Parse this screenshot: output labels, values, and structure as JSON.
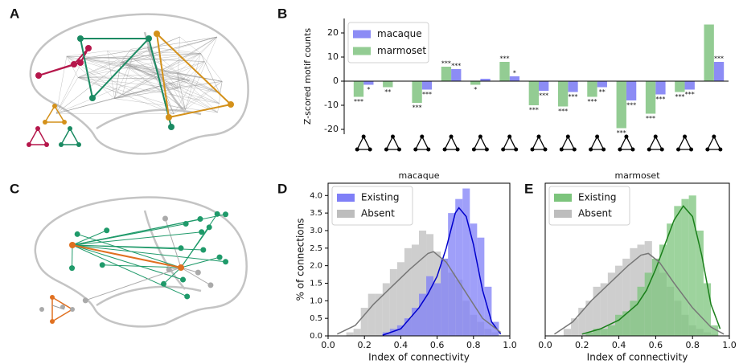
{
  "panel_labels": [
    "A",
    "B",
    "C",
    "D",
    "E"
  ],
  "chart_data": [
    {
      "type": "bar",
      "ylabel": "Z-scored motif counts",
      "categories": [
        null,
        null,
        null,
        null,
        null,
        null,
        null,
        null,
        null,
        null,
        null,
        null,
        null
      ],
      "series": [
        {
          "name": "macaque",
          "color": "#8c8cf5",
          "values": [
            -1.5,
            0,
            -3.5,
            5,
            1,
            2,
            -4,
            -4.5,
            -2.5,
            -8,
            -5.5,
            -3.5,
            8
          ],
          "significance": [
            "*",
            null,
            "***",
            "***",
            null,
            "*",
            "***",
            "***",
            "**",
            "***",
            "***",
            "***",
            "***"
          ]
        },
        {
          "name": "marmoset",
          "color": "#93cc93",
          "values": [
            -6.5,
            -2.5,
            -9,
            6,
            -1.5,
            8,
            -10,
            -10.5,
            -6.5,
            -19.5,
            -13.5,
            -4.5,
            23.5
          ],
          "significance": [
            "***",
            "**",
            "***",
            "***",
            "*",
            "***",
            "***",
            "***",
            "***",
            "***",
            "***",
            "***",
            null
          ]
        }
      ],
      "ylim": [
        -22,
        26
      ],
      "yticks": [
        -20,
        -10,
        0,
        10,
        20
      ],
      "legend": "upper left"
    },
    {
      "type": "histogram",
      "title": "macaque",
      "xlabel": "Index of connectivity",
      "ylabel": "% of connections",
      "xlim": [
        0,
        1
      ],
      "ylim": [
        0,
        4.35
      ],
      "xticks": [
        {
          "value": 0,
          "label": "0.0"
        },
        {
          "value": 0.2,
          "label": "0.2"
        },
        {
          "value": 0.4,
          "label": "0.4"
        },
        {
          "value": 0.6,
          "label": "0.6"
        },
        {
          "value": 0.8,
          "label": "0.8"
        },
        {
          "value": 1,
          "label": "1.0"
        }
      ],
      "yticks": [
        {
          "value": 0,
          "label": "0.0"
        },
        0.5,
        {
          "value": 1,
          "label": "1.0"
        },
        1.5,
        {
          "value": 2,
          "label": "2.0"
        },
        2.5,
        {
          "value": 3,
          "label": "3.0"
        },
        3.5,
        {
          "value": 4,
          "label": "4.0"
        }
      ],
      "legend": "upper left",
      "bins": [
        0.1,
        0.14,
        0.18,
        0.22,
        0.26,
        0.3,
        0.34,
        0.38,
        0.42,
        0.46,
        0.5,
        0.54,
        0.58,
        0.62,
        0.66,
        0.7,
        0.74,
        0.78,
        0.82,
        0.86,
        0.9,
        0.94
      ],
      "series": [
        {
          "name": "Existing",
          "color": "#7f7ff7",
          "line_color": "#0000cc",
          "values": [
            0,
            0,
            0,
            0,
            0,
            0.1,
            0.2,
            0.3,
            0.5,
            0.8,
            1.2,
            1.7,
            1.5,
            2.2,
            3.5,
            3.9,
            4.2,
            3.2,
            2.8,
            1.4,
            0.4
          ],
          "kde_x": [
            0.3,
            0.4,
            0.5,
            0.55,
            0.6,
            0.65,
            0.7,
            0.72,
            0.76,
            0.8,
            0.85,
            0.9,
            0.95
          ],
          "kde_y": [
            0.02,
            0.2,
            0.8,
            1.2,
            1.7,
            2.5,
            3.5,
            3.65,
            3.4,
            2.6,
            1.3,
            0.4,
            0.05
          ]
        },
        {
          "name": "Absent",
          "color": "#bdbdbd",
          "line_color": "#777777",
          "values": [
            0.1,
            0.2,
            0.8,
            1.2,
            1.2,
            1.5,
            1.9,
            2.1,
            2.5,
            2.6,
            3.0,
            2.9,
            2.4,
            2.2,
            1.8,
            1.6,
            1.0,
            0.6,
            0.4,
            0.2,
            0.1
          ],
          "kde_x": [
            0.05,
            0.15,
            0.25,
            0.35,
            0.45,
            0.55,
            0.58,
            0.65,
            0.75,
            0.85,
            0.95
          ],
          "kde_y": [
            0.05,
            0.3,
            0.9,
            1.4,
            1.9,
            2.35,
            2.4,
            2.1,
            1.3,
            0.5,
            0.1
          ]
        }
      ]
    },
    {
      "type": "histogram",
      "title": "marmoset",
      "xlabel": "Index of connectivity",
      "xlim": [
        0,
        1
      ],
      "ylim": [
        0,
        4.35
      ],
      "xticks": [
        {
          "value": 0,
          "label": "0.0"
        },
        {
          "value": 0.2,
          "label": "0.2"
        },
        {
          "value": 0.4,
          "label": "0.4"
        },
        {
          "value": 0.6,
          "label": "0.6"
        },
        {
          "value": 0.8,
          "label": "0.8"
        },
        {
          "value": 1,
          "label": "1.0"
        }
      ],
      "legend": "upper left",
      "bins": [
        0.1,
        0.14,
        0.18,
        0.22,
        0.26,
        0.3,
        0.34,
        0.38,
        0.42,
        0.46,
        0.5,
        0.54,
        0.58,
        0.62,
        0.66,
        0.7,
        0.74,
        0.78,
        0.82,
        0.86,
        0.9,
        0.94
      ],
      "series": [
        {
          "name": "Existing",
          "color": "#7cc47c",
          "line_color": "#1a7f1a",
          "values": [
            0,
            0,
            0,
            0.1,
            0.2,
            0.2,
            0.3,
            0.6,
            0.7,
            1.0,
            1.4,
            1.8,
            2.2,
            2.6,
            3.2,
            3.7,
            3.9,
            4.0,
            3.0,
            1.5,
            0.3
          ],
          "kde_x": [
            0.2,
            0.3,
            0.4,
            0.5,
            0.55,
            0.6,
            0.65,
            0.7,
            0.75,
            0.8,
            0.85,
            0.9,
            0.95
          ],
          "kde_y": [
            0.05,
            0.2,
            0.45,
            0.9,
            1.3,
            1.9,
            2.6,
            3.3,
            3.7,
            3.4,
            2.3,
            0.9,
            0.2
          ]
        },
        {
          "name": "Absent",
          "color": "#bdbdbd",
          "line_color": "#777777",
          "values": [
            0.2,
            0.5,
            0.8,
            1.0,
            1.4,
            1.5,
            1.8,
            2.0,
            2.2,
            2.5,
            2.6,
            2.7,
            2.2,
            1.8,
            1.4,
            1.0,
            0.6,
            0.3,
            0.2,
            0.1,
            0.05
          ],
          "kde_x": [
            0.05,
            0.15,
            0.25,
            0.35,
            0.45,
            0.52,
            0.56,
            0.62,
            0.7,
            0.8,
            0.9,
            0.97
          ],
          "kde_y": [
            0.05,
            0.4,
            1.0,
            1.5,
            2.0,
            2.3,
            2.35,
            2.1,
            1.5,
            0.8,
            0.25,
            0.05
          ]
        }
      ]
    }
  ]
}
